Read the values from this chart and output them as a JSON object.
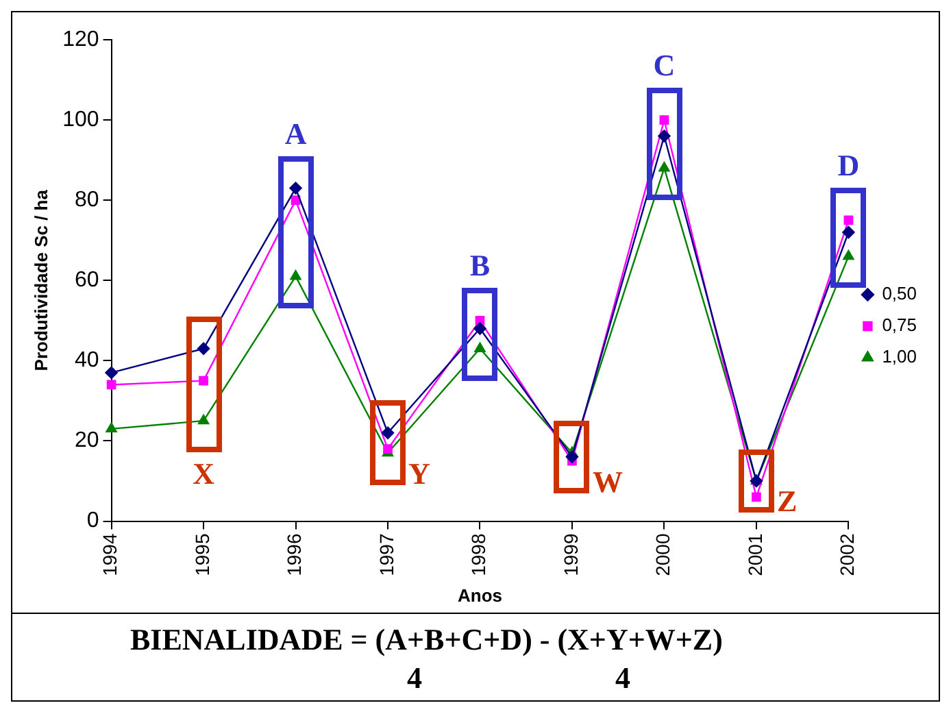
{
  "chart_data": {
    "type": "line",
    "categories": [
      "1994",
      "1995",
      "1996",
      "1997",
      "1998",
      "1999",
      "2000",
      "2001",
      "2002"
    ],
    "series": [
      {
        "name": "0,50",
        "color": "#000080",
        "marker": "diamond",
        "values": [
          37,
          43,
          83,
          22,
          48,
          16,
          96,
          10,
          72
        ]
      },
      {
        "name": "0,75",
        "color": "#ff00ff",
        "marker": "square",
        "values": [
          34,
          35,
          80,
          18,
          50,
          15,
          100,
          6,
          75
        ]
      },
      {
        "name": "1,00",
        "color": "#008000",
        "marker": "triangle",
        "values": [
          23,
          25,
          61,
          17,
          43,
          17,
          88,
          10,
          66
        ]
      }
    ],
    "ylabel": "Produtividade Sc / ha",
    "xlabel": "Anos",
    "ylim": [
      0,
      120
    ],
    "yticks": [
      0,
      20,
      40,
      60,
      80,
      100,
      120
    ],
    "grid": false,
    "legend": "right",
    "annotations": [
      {
        "text": "A",
        "x": "1996",
        "y": 83
      },
      {
        "text": "B",
        "x": "1998",
        "y": 50
      },
      {
        "text": "C",
        "x": "2000",
        "y": 100
      },
      {
        "text": "D",
        "x": "2002",
        "y": 75
      },
      {
        "text": "X",
        "x": "1995",
        "y": 25
      },
      {
        "text": "Y",
        "x": "1997",
        "y": 17
      },
      {
        "text": "W",
        "x": "1999",
        "y": 15
      },
      {
        "text": "Z",
        "x": "2001",
        "y": 6
      },
      "BIENALIDADE = (A+B+C+D) - (X+Y+W+Z)",
      "4",
      "4"
    ]
  }
}
